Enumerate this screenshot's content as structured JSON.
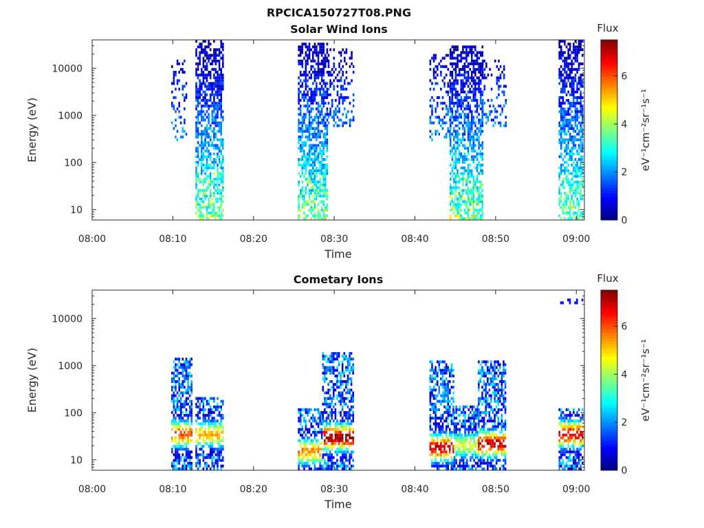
{
  "figure": {
    "title": "RPCICA150727T08.PNG"
  },
  "chart_data": [
    {
      "type": "heatmap",
      "title": "Solar Wind Ions",
      "xlabel": "Time",
      "ylabel": "Energy (eV)",
      "yscale": "log",
      "xlim": [
        "08:00",
        "09:01"
      ],
      "ylim": [
        6,
        40000
      ],
      "xticks": [
        "08:00",
        "08:10",
        "08:20",
        "08:30",
        "08:40",
        "08:50",
        "09:00"
      ],
      "yticks": [
        "10",
        "100",
        "1000",
        "10000"
      ],
      "colorbar": {
        "label": "Flux",
        "unit": "eV⁻¹cm⁻²sr⁻¹s⁻¹",
        "ticks": [
          "0",
          "2",
          "4",
          "6"
        ],
        "range": [
          0,
          7.5
        ],
        "colormap": "jet"
      },
      "grid": false,
      "bursts": [
        {
          "start_min": 9.8,
          "end_min": 11.6,
          "elow": 300,
          "ehigh": 15000,
          "sparse": true
        },
        {
          "start_min": 12.8,
          "end_min": 16.2,
          "elow": 6,
          "ehigh": 38000
        },
        {
          "start_min": 25.5,
          "end_min": 29.2,
          "elow": 6,
          "ehigh": 36000
        },
        {
          "start_min": 29.2,
          "end_min": 32.3,
          "elow": 600,
          "ehigh": 25000,
          "sparse": true
        },
        {
          "start_min": 41.8,
          "end_min": 44.3,
          "elow": 300,
          "ehigh": 20000,
          "sparse": true
        },
        {
          "start_min": 44.3,
          "end_min": 48.3,
          "elow": 6,
          "ehigh": 32000
        },
        {
          "start_min": 48.3,
          "end_min": 51.2,
          "elow": 600,
          "ehigh": 15000,
          "sparse": true
        },
        {
          "start_min": 57.8,
          "end_min": 60.8,
          "elow": 6,
          "ehigh": 38000
        }
      ]
    },
    {
      "type": "heatmap",
      "title": "Cometary Ions",
      "xlabel": "Time",
      "ylabel": "Energy (eV)",
      "yscale": "log",
      "xlim": [
        "08:00",
        "09:01"
      ],
      "ylim": [
        6,
        40000
      ],
      "xticks": [
        "08:00",
        "08:10",
        "08:20",
        "08:30",
        "08:40",
        "08:50",
        "09:00"
      ],
      "yticks": [
        "10",
        "100",
        "1000",
        "10000"
      ],
      "colorbar": {
        "label": "Flux",
        "unit": "eV⁻¹cm⁻²sr⁻¹s⁻¹",
        "ticks": [
          "0",
          "2",
          "4",
          "6"
        ],
        "range": [
          0,
          7.5
        ],
        "colormap": "jet"
      },
      "grid": false,
      "bursts": [
        {
          "start_min": 9.8,
          "end_min": 12.3,
          "elow": 6,
          "ehigh": 1400,
          "peak_e": 35,
          "peak_flux": 6.0
        },
        {
          "start_min": 12.8,
          "end_min": 16.2,
          "elow": 6,
          "ehigh": 220,
          "peak_e": 35,
          "peak_flux": 5.2
        },
        {
          "start_min": 25.5,
          "end_min": 28.5,
          "elow": 6,
          "ehigh": 120,
          "peak_e": 15,
          "peak_flux": 5.6
        },
        {
          "start_min": 28.5,
          "end_min": 32.3,
          "elow": 6,
          "ehigh": 2000,
          "peak_e": 30,
          "peak_flux": 7.3
        },
        {
          "start_min": 41.8,
          "end_min": 44.8,
          "elow": 6,
          "ehigh": 1200,
          "peak_e": 18,
          "peak_flux": 7.0
        },
        {
          "start_min": 44.8,
          "end_min": 47.8,
          "elow": 6,
          "ehigh": 150,
          "peak_e": 20,
          "peak_flux": 4.5
        },
        {
          "start_min": 47.8,
          "end_min": 51.2,
          "elow": 6,
          "ehigh": 1200,
          "peak_e": 22,
          "peak_flux": 7.0
        },
        {
          "start_min": 57.8,
          "end_min": 60.8,
          "elow": 6,
          "ehigh": 120,
          "peak_e": 35,
          "peak_flux": 6.8
        },
        {
          "start_min": 58.0,
          "end_min": 60.8,
          "elow": 20000,
          "ehigh": 25000,
          "sparse": true
        }
      ]
    }
  ]
}
